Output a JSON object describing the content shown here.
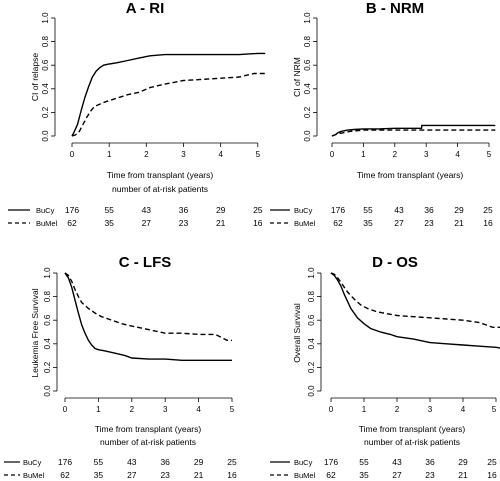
{
  "chart_data": [
    {
      "type": "line",
      "title": "A - RI",
      "xlabel": "Time from transplant (years)",
      "ylabel": "CI of relapse",
      "xlim": [
        0,
        5.3
      ],
      "ylim": [
        0,
        1
      ],
      "xticks": [
        "0",
        "1",
        "2",
        "3",
        "4",
        "5"
      ],
      "yticks": [
        "0.0",
        "0.2",
        "0.4",
        "0.6",
        "0.8",
        "1.0"
      ],
      "risk_title": "number of at-risk patients",
      "series": [
        {
          "name": "BuCy",
          "style": "solid",
          "x": [
            0,
            0.05,
            0.15,
            0.25,
            0.35,
            0.45,
            0.55,
            0.65,
            0.75,
            0.85,
            1.0,
            1.2,
            1.5,
            1.8,
            2.1,
            2.5,
            3.0,
            3.5,
            4.0,
            4.5,
            5.0,
            5.2
          ],
          "y": [
            0,
            0.03,
            0.1,
            0.22,
            0.33,
            0.42,
            0.5,
            0.55,
            0.58,
            0.6,
            0.61,
            0.62,
            0.64,
            0.66,
            0.68,
            0.69,
            0.69,
            0.69,
            0.69,
            0.69,
            0.7,
            0.7
          ]
        },
        {
          "name": "BuMel",
          "style": "dashed",
          "x": [
            0,
            0.1,
            0.2,
            0.3,
            0.4,
            0.5,
            0.6,
            0.75,
            0.9,
            1.1,
            1.3,
            1.5,
            1.8,
            2.1,
            2.5,
            3.0,
            3.5,
            4.0,
            4.5,
            4.9,
            5.2
          ],
          "y": [
            0,
            0.01,
            0.04,
            0.1,
            0.16,
            0.21,
            0.25,
            0.27,
            0.29,
            0.31,
            0.33,
            0.35,
            0.37,
            0.41,
            0.44,
            0.47,
            0.48,
            0.49,
            0.5,
            0.53,
            0.53
          ]
        }
      ],
      "risk_table": [
        {
          "label": "BuCy",
          "values": [
            "176",
            "55",
            "43",
            "36",
            "29",
            "25"
          ]
        },
        {
          "label": "BuMel",
          "values": [
            "62",
            "35",
            "27",
            "23",
            "21",
            "16"
          ]
        }
      ]
    },
    {
      "type": "line",
      "title": "B - NRM",
      "xlabel": "Time from transplant (years)",
      "ylabel": "CI of NRM",
      "xlim": [
        0,
        5.3
      ],
      "ylim": [
        0,
        1
      ],
      "xticks": [
        "0",
        "1",
        "2",
        "3",
        "4",
        "5"
      ],
      "yticks": [
        "0.0",
        "0.2",
        "0.4",
        "0.6",
        "0.8",
        "1.0"
      ],
      "risk_title": "",
      "series": [
        {
          "name": "BuCy",
          "style": "solid",
          "x": [
            0,
            0.1,
            0.2,
            0.3,
            0.5,
            0.7,
            1.0,
            1.5,
            2.0,
            2.5,
            2.85,
            2.86,
            3.5,
            4.0,
            4.5,
            5.0,
            5.2
          ],
          "y": [
            0,
            0.01,
            0.03,
            0.04,
            0.05,
            0.055,
            0.06,
            0.06,
            0.065,
            0.065,
            0.065,
            0.09,
            0.09,
            0.09,
            0.09,
            0.09,
            0.09
          ]
        },
        {
          "name": "BuMel",
          "style": "dashed",
          "x": [
            0,
            0.2,
            0.4,
            0.6,
            0.8,
            1.0,
            1.5,
            2.0,
            2.5,
            3.0,
            3.5,
            4.0,
            4.5,
            5.0,
            5.2
          ],
          "y": [
            0,
            0.02,
            0.03,
            0.04,
            0.045,
            0.05,
            0.05,
            0.05,
            0.05,
            0.05,
            0.05,
            0.05,
            0.05,
            0.05,
            0.05
          ]
        }
      ],
      "risk_table": [
        {
          "label": "BuCy",
          "values": [
            "176",
            "55",
            "43",
            "36",
            "29",
            "25"
          ]
        },
        {
          "label": "BuMel",
          "values": [
            "62",
            "35",
            "27",
            "23",
            "21",
            "16"
          ]
        }
      ]
    },
    {
      "type": "line",
      "title": "C - LFS",
      "xlabel": "Time from transplant (years)",
      "ylabel": "Leukemia Free Survival",
      "xlim": [
        0,
        5.2
      ],
      "ylim": [
        0,
        1
      ],
      "xticks": [
        "0",
        "1",
        "2",
        "3",
        "4",
        "5"
      ],
      "yticks": [
        "0.0",
        "0.2",
        "0.4",
        "0.6",
        "0.8",
        "1.0"
      ],
      "risk_title": "number of at-risk patients",
      "series": [
        {
          "name": "BuCy",
          "style": "solid",
          "x": [
            0,
            0.1,
            0.2,
            0.3,
            0.4,
            0.5,
            0.6,
            0.7,
            0.8,
            0.9,
            1.0,
            1.2,
            1.5,
            1.8,
            2.0,
            2.5,
            3.0,
            3.5,
            4.0,
            4.5,
            5.0
          ],
          "y": [
            1,
            0.96,
            0.88,
            0.77,
            0.66,
            0.56,
            0.49,
            0.43,
            0.39,
            0.36,
            0.35,
            0.34,
            0.32,
            0.3,
            0.28,
            0.27,
            0.27,
            0.26,
            0.26,
            0.26,
            0.26
          ]
        },
        {
          "name": "BuMel",
          "style": "dashed",
          "x": [
            0,
            0.1,
            0.2,
            0.3,
            0.4,
            0.5,
            0.7,
            0.9,
            1.1,
            1.4,
            1.7,
            2.0,
            2.5,
            3.0,
            3.5,
            4.0,
            4.5,
            4.85,
            5.0
          ],
          "y": [
            1,
            0.98,
            0.93,
            0.86,
            0.8,
            0.75,
            0.7,
            0.66,
            0.63,
            0.6,
            0.57,
            0.55,
            0.52,
            0.49,
            0.49,
            0.48,
            0.48,
            0.43,
            0.43
          ]
        }
      ],
      "risk_table": [
        {
          "label": "BuCy",
          "values": [
            "176",
            "55",
            "43",
            "36",
            "29",
            "25"
          ]
        },
        {
          "label": "BuMel",
          "values": [
            "62",
            "35",
            "27",
            "23",
            "21",
            "16"
          ]
        }
      ]
    },
    {
      "type": "line",
      "title": "D - OS",
      "xlabel": "Time from transplant (years)",
      "ylabel": "Overall Survival",
      "xlim": [
        0,
        5.2
      ],
      "ylim": [
        0,
        1
      ],
      "xticks": [
        "0",
        "1",
        "2",
        "3",
        "4",
        "5"
      ],
      "yticks": [
        "0.0",
        "0.2",
        "0.4",
        "0.6",
        "0.8",
        "1.0"
      ],
      "risk_title": "number of at-risk patients",
      "series": [
        {
          "name": "BuCy",
          "style": "solid",
          "x": [
            0,
            0.1,
            0.2,
            0.3,
            0.4,
            0.5,
            0.6,
            0.8,
            1.0,
            1.2,
            1.5,
            1.8,
            2.0,
            2.5,
            3.0,
            3.5,
            4.0,
            4.5,
            5.0,
            5.2
          ],
          "y": [
            1,
            0.98,
            0.94,
            0.89,
            0.82,
            0.76,
            0.7,
            0.62,
            0.57,
            0.53,
            0.5,
            0.48,
            0.46,
            0.44,
            0.41,
            0.4,
            0.39,
            0.38,
            0.37,
            0.36
          ]
        },
        {
          "name": "BuMel",
          "style": "dashed",
          "x": [
            0,
            0.1,
            0.2,
            0.3,
            0.4,
            0.5,
            0.7,
            0.9,
            1.1,
            1.4,
            1.8,
            2.0,
            2.5,
            3.0,
            3.5,
            4.0,
            4.5,
            4.9,
            5.2
          ],
          "y": [
            1,
            0.99,
            0.96,
            0.92,
            0.88,
            0.84,
            0.78,
            0.73,
            0.7,
            0.67,
            0.65,
            0.64,
            0.63,
            0.62,
            0.61,
            0.6,
            0.58,
            0.54,
            0.54
          ]
        }
      ],
      "risk_table": [
        {
          "label": "BuCy",
          "values": [
            "176",
            "55",
            "43",
            "36",
            "29",
            "25"
          ]
        },
        {
          "label": "BuMel",
          "values": [
            "62",
            "35",
            "27",
            "23",
            "21",
            "16"
          ]
        }
      ]
    }
  ]
}
